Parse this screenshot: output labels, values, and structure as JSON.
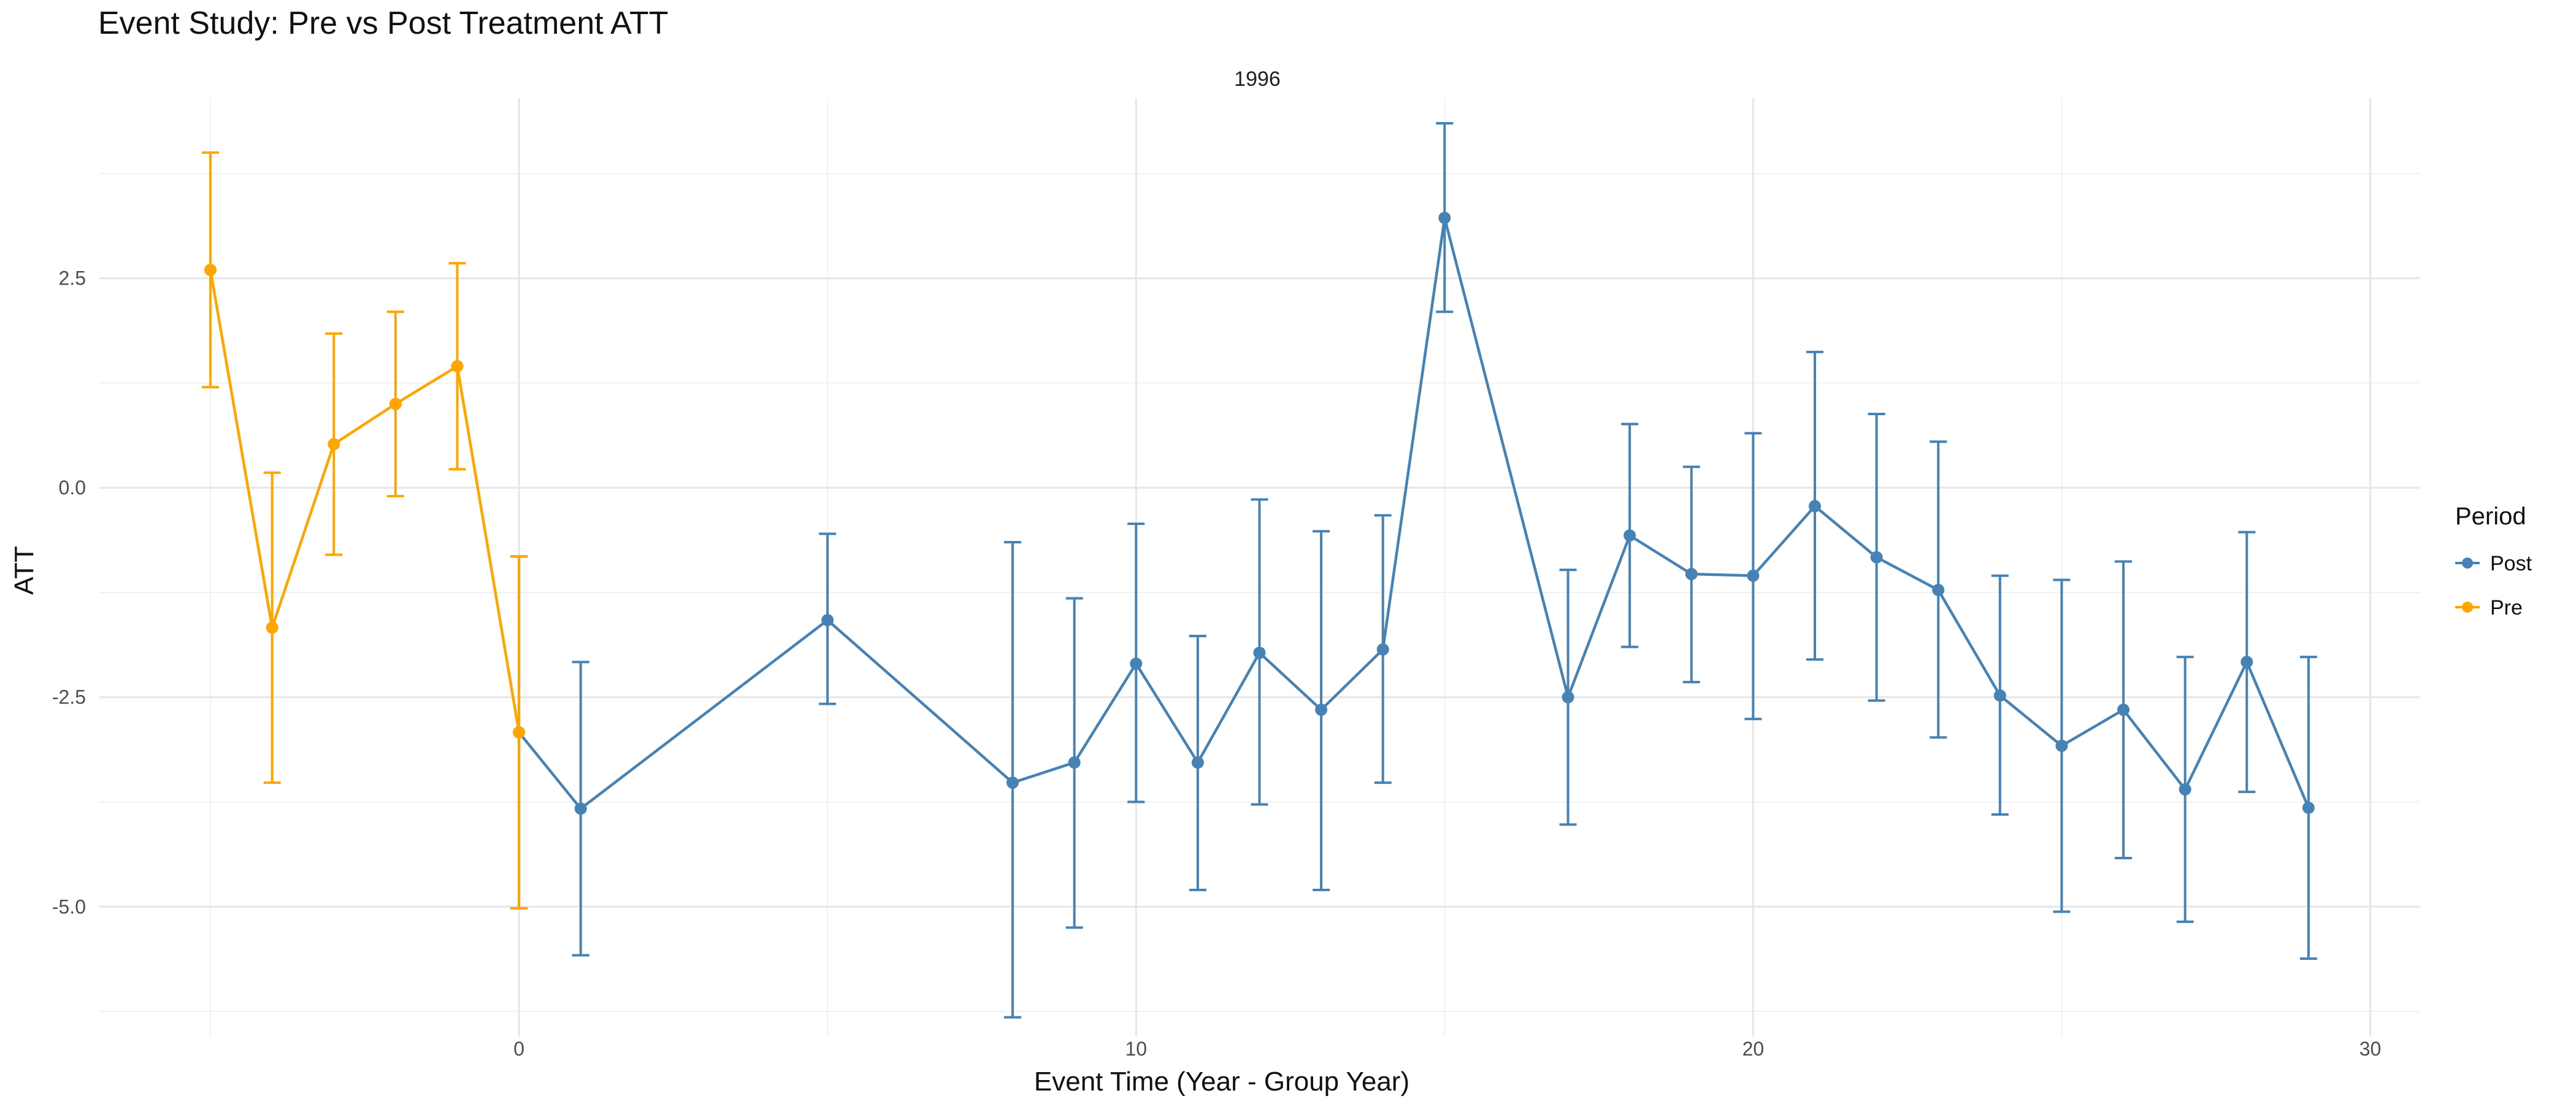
{
  "chart_data": {
    "type": "line",
    "title": "Event Study: Pre vs Post Treatment ATT",
    "facet_label": "1996",
    "xlabel": "Event Time (Year - Group Year)",
    "ylabel": "ATT",
    "xlim": [
      -6.8,
      30.8
    ],
    "ylim": [
      -6.55,
      4.65
    ],
    "x_ticks": [
      0,
      10,
      20,
      30
    ],
    "y_ticks": [
      2.5,
      0.0,
      -2.5,
      -5.0
    ],
    "y_tick_labels": [
      "2.5",
      "0.0",
      "-2.5",
      "-5.0"
    ],
    "grid": true,
    "legend": {
      "title": "Period",
      "position": "right"
    },
    "series": [
      {
        "name": "Post",
        "color": "#4682B4",
        "points": [
          {
            "x": 0,
            "y": -2.92,
            "lo": -5.02,
            "hi": -0.82
          },
          {
            "x": 1,
            "y": -3.83,
            "lo": -5.58,
            "hi": -2.08
          },
          {
            "x": 5,
            "y": -1.58,
            "lo": -2.58,
            "hi": -0.55
          },
          {
            "x": 8,
            "y": -3.52,
            "lo": -6.32,
            "hi": -0.65
          },
          {
            "x": 9,
            "y": -3.28,
            "lo": -5.25,
            "hi": -1.32
          },
          {
            "x": 10,
            "y": -2.1,
            "lo": -3.75,
            "hi": -0.43
          },
          {
            "x": 11,
            "y": -3.28,
            "lo": -4.8,
            "hi": -1.77
          },
          {
            "x": 12,
            "y": -1.97,
            "lo": -3.78,
            "hi": -0.14
          },
          {
            "x": 13,
            "y": -2.65,
            "lo": -4.8,
            "hi": -0.52
          },
          {
            "x": 14,
            "y": -1.93,
            "lo": -3.52,
            "hi": -0.33
          },
          {
            "x": 15,
            "y": 3.22,
            "lo": 2.1,
            "hi": 4.35
          },
          {
            "x": 17,
            "y": -2.5,
            "lo": -4.02,
            "hi": -0.98
          },
          {
            "x": 18,
            "y": -0.57,
            "lo": -1.9,
            "hi": 0.76
          },
          {
            "x": 19,
            "y": -1.03,
            "lo": -2.32,
            "hi": 0.25
          },
          {
            "x": 20,
            "y": -1.05,
            "lo": -2.76,
            "hi": 0.65
          },
          {
            "x": 21,
            "y": -0.22,
            "lo": -2.05,
            "hi": 1.62
          },
          {
            "x": 22,
            "y": -0.83,
            "lo": -2.54,
            "hi": 0.88
          },
          {
            "x": 23,
            "y": -1.22,
            "lo": -2.98,
            "hi": 0.55
          },
          {
            "x": 24,
            "y": -2.48,
            "lo": -3.9,
            "hi": -1.05
          },
          {
            "x": 25,
            "y": -3.08,
            "lo": -5.06,
            "hi": -1.1
          },
          {
            "x": 26,
            "y": -2.65,
            "lo": -4.42,
            "hi": -0.88
          },
          {
            "x": 27,
            "y": -3.6,
            "lo": -5.18,
            "hi": -2.02
          },
          {
            "x": 28,
            "y": -2.08,
            "lo": -3.63,
            "hi": -0.53
          },
          {
            "x": 29,
            "y": -3.82,
            "lo": -5.62,
            "hi": -2.02
          }
        ]
      },
      {
        "name": "Pre",
        "color": "#FFA500",
        "points": [
          {
            "x": -5,
            "y": 2.6,
            "lo": 1.2,
            "hi": 4.0
          },
          {
            "x": -4,
            "y": -1.67,
            "lo": -3.52,
            "hi": 0.18
          },
          {
            "x": -3,
            "y": 0.52,
            "lo": -0.8,
            "hi": 1.84
          },
          {
            "x": -2,
            "y": 1.0,
            "lo": -0.1,
            "hi": 2.1
          },
          {
            "x": -1,
            "y": 1.45,
            "lo": 0.22,
            "hi": 2.68
          },
          {
            "x": 0,
            "y": -2.92,
            "lo": -5.02,
            "hi": -0.82
          }
        ]
      }
    ]
  }
}
